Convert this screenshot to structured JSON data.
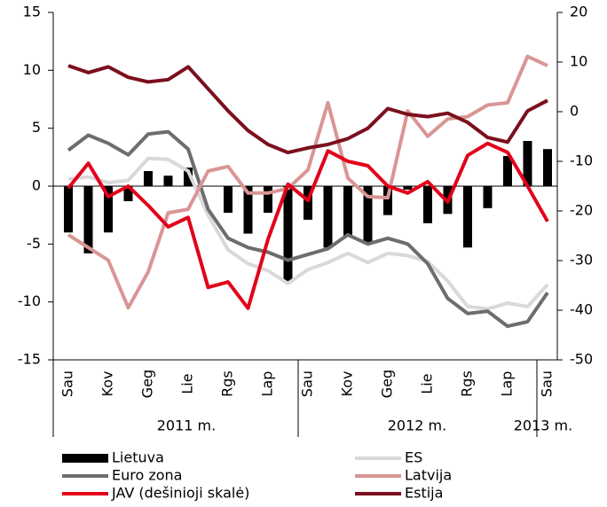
{
  "chart_data": {
    "type": "bar",
    "categories": [
      "Sau",
      null,
      "Kov",
      null,
      "Geg",
      null,
      "Lie",
      null,
      "Rgs",
      null,
      "Lap",
      null,
      "Sau",
      null,
      "Kov",
      null,
      "Geg",
      null,
      "Lie",
      null,
      "Rgs",
      null,
      "Lap",
      null,
      "Sau"
    ],
    "year_labels": [
      "2011 m.",
      "2012 m.",
      "2013 m."
    ],
    "ylim": [
      -15,
      15
    ],
    "yticks": [
      -15,
      -10,
      -5,
      0,
      5,
      10,
      15
    ],
    "y2lim": [
      -50,
      20
    ],
    "y2ticks": [
      -50,
      -40,
      -30,
      -20,
      -10,
      0,
      10,
      20
    ],
    "series": [
      {
        "name": "Lietuva",
        "type": "bar",
        "color": "#000000",
        "values": [
          -4,
          -5.8,
          -4,
          -1.3,
          1.3,
          0.9,
          1.6,
          0,
          -2.3,
          -4.1,
          -2.3,
          -8.2,
          -2.9,
          -5.3,
          -4.3,
          -5,
          -2.5,
          -0.3,
          -3.2,
          -2.4,
          -5.3,
          -1.9,
          2.6,
          3.9,
          3.2
        ]
      },
      {
        "name": "ES",
        "type": "line",
        "color": "#d9d9d9",
        "values": [
          0.6,
          0.8,
          0.3,
          0.5,
          2.4,
          2.3,
          1.3,
          -2.5,
          -5.5,
          -6.7,
          -7.3,
          -8.4,
          -7.2,
          -6.6,
          -5.8,
          -6.6,
          -5.8,
          -6,
          -6.5,
          -8.2,
          -10.4,
          -10.6,
          -10.1,
          -10.4,
          -8.5
        ]
      },
      {
        "name": "Euro zona",
        "type": "line",
        "color": "#6d6d6d",
        "values": [
          3.1,
          4.4,
          3.7,
          2.7,
          4.5,
          4.7,
          3.2,
          -2,
          -4.5,
          -5.3,
          -5.7,
          -6.4,
          -5.9,
          -5.4,
          -4.2,
          -5,
          -4.5,
          -5,
          -6.7,
          -9.7,
          -11,
          -10.8,
          -12.1,
          -11.7,
          -9.2
        ]
      },
      {
        "name": "Latvija",
        "type": "line",
        "color": "#d99594",
        "values": [
          -4.2,
          -5.3,
          -6.4,
          -10.5,
          -7.4,
          -2.3,
          -2,
          1.3,
          1.7,
          -0.6,
          -0.6,
          -0.2,
          1.4,
          7.2,
          0.7,
          -0.9,
          -1,
          6.5,
          4.3,
          5.8,
          6,
          7,
          7.2,
          11.2,
          10.4
        ]
      },
      {
        "name": "JAV (dešinioji skalė)",
        "type": "line",
        "axis": "y2",
        "color": "#e2001a",
        "values": [
          -15.4,
          -10.4,
          -17.1,
          -15,
          -18.9,
          -23.2,
          -21.3,
          -35.4,
          -34.3,
          -39.6,
          -25.7,
          -14.6,
          -17.9,
          -7.9,
          -10,
          -10.9,
          -15,
          -16.4,
          -14.1,
          -18.2,
          -8.8,
          -6.4,
          -8.2,
          -15,
          -22.1
        ]
      },
      {
        "name": "Estija",
        "type": "line",
        "color": "#7b0f1e",
        "values": [
          10.4,
          9.8,
          10.3,
          9.4,
          9,
          9.2,
          10.3,
          8.4,
          6.5,
          4.8,
          3.6,
          2.9,
          3.3,
          3.6,
          4.1,
          5,
          6.7,
          6.2,
          6,
          6.3,
          5.5,
          4.2,
          3.8,
          6.5,
          7.4
        ]
      }
    ]
  }
}
